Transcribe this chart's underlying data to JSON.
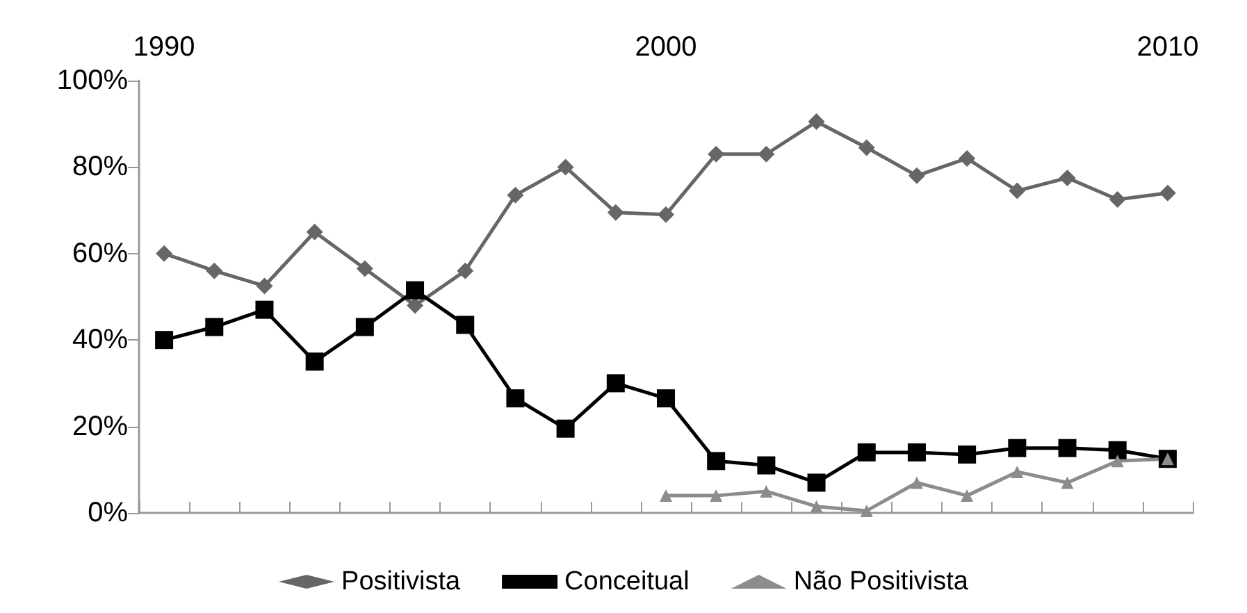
{
  "chart_data": {
    "type": "line",
    "categories": [
      "1990",
      null,
      null,
      null,
      null,
      null,
      null,
      null,
      null,
      null,
      "2000",
      null,
      null,
      null,
      null,
      null,
      null,
      null,
      null,
      null,
      "2010"
    ],
    "ylim": [
      0,
      100
    ],
    "yticks": [
      {
        "value": 0,
        "label": "0%"
      },
      {
        "value": 20,
        "label": "20%"
      },
      {
        "value": 40,
        "label": "40%"
      },
      {
        "value": 60,
        "label": "60%"
      },
      {
        "value": 80,
        "label": "80%"
      },
      {
        "value": 100,
        "label": "100%"
      }
    ],
    "grid": false,
    "legend": "bottom",
    "line_style": "solid",
    "series": [
      {
        "name": "Positivista",
        "color": "#666666",
        "marker": "diamond",
        "values": [
          60,
          56,
          52.5,
          65,
          56.5,
          48,
          56,
          73.5,
          80,
          69.5,
          69,
          83,
          83,
          90.5,
          84.5,
          78,
          82,
          74.5,
          77.5,
          72.5,
          74
        ]
      },
      {
        "name": "Conceitual",
        "color": "#000000",
        "marker": "square",
        "values": [
          40,
          43,
          47,
          35,
          43,
          51.5,
          43.5,
          26.5,
          19.5,
          30,
          26.5,
          12,
          11,
          7,
          14,
          14,
          13.5,
          15,
          15,
          14.5,
          12.5
        ]
      },
      {
        "name": "Não Positivista",
        "color": "#8c8c8c",
        "marker": "triangle",
        "values": [
          null,
          null,
          null,
          null,
          null,
          null,
          null,
          null,
          null,
          null,
          4,
          4,
          5,
          1.5,
          0.5,
          7,
          4,
          9.5,
          7,
          12,
          12.5
        ]
      }
    ]
  }
}
